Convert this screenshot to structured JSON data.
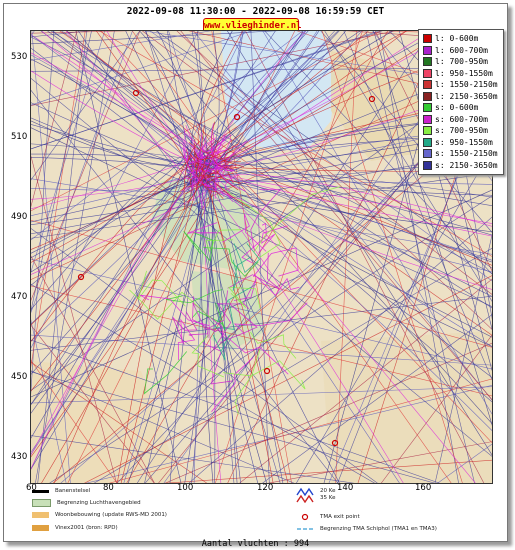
{
  "header": {
    "title": "2022-09-08 11:30:00 - 2022-09-08 16:59:59 CET",
    "site_badge": "www.vlieghinder.nl"
  },
  "axes": {
    "y_ticks": [
      "530",
      "510",
      "490",
      "470",
      "450",
      "430"
    ],
    "x_ticks": [
      "60",
      "80",
      "100",
      "120",
      "140",
      "160"
    ]
  },
  "legend": {
    "items": [
      {
        "label": "l: 0-600m",
        "color": "#cc0000"
      },
      {
        "label": "l: 600-700m",
        "color": "#aa22cc"
      },
      {
        "label": "l: 700-950m",
        "color": "#227722"
      },
      {
        "label": "l: 950-1550m",
        "color": "#ee4466"
      },
      {
        "label": "l: 1550-2150m",
        "color": "#cc3333"
      },
      {
        "label": "l: 2150-3650m",
        "color": "#882222"
      },
      {
        "label": "s: 0-600m",
        "color": "#33cc33"
      },
      {
        "label": "s: 600-700m",
        "color": "#cc22cc"
      },
      {
        "label": "s: 700-950m",
        "color": "#88ee44"
      },
      {
        "label": "s: 950-1550m",
        "color": "#22aa88"
      },
      {
        "label": "s: 1550-2150m",
        "color": "#6666cc"
      },
      {
        "label": "s: 2150-3650m",
        "color": "#333399"
      }
    ]
  },
  "bottom_legend": {
    "runway": "Banenstelsel",
    "airport_boundary": "Begrenzing Luchthavengebied",
    "housing": "Woonbebouwing (update RWS-MD 2001)",
    "vinex": "Vinex2001 (bron: RPD)",
    "noise_20": "20 Ke",
    "noise_35": "35 Ke",
    "tma_exit": "TMA exit point",
    "tma_boundary": "Begrenzing TMA Schiphol (TMA1 en TMA3)"
  },
  "footer": {
    "flight_count": "Aantal vluchten : 994"
  },
  "colors": {
    "tracks_departure": "#3a3a9a",
    "tracks_arrival": "#cc2222",
    "land": "#e9d9b8",
    "water": "#cfe8f7",
    "green": "#c8e0b8",
    "magenta": "#dd22dd",
    "badge": "#ffff33"
  }
}
